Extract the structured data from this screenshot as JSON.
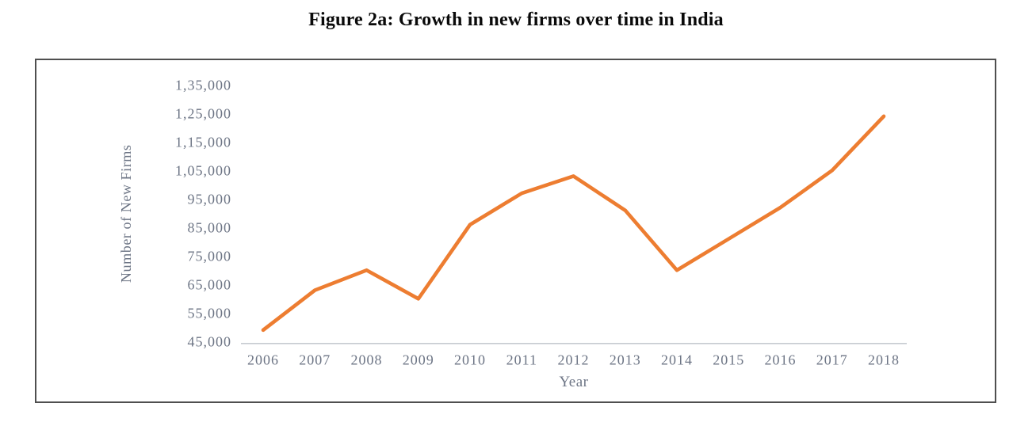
{
  "figure": {
    "title": "Figure 2a: Growth in new firms over time in India"
  },
  "chart_data": {
    "type": "line",
    "title": "Figure 2a: Growth in new firms over time in India",
    "xlabel": "Year",
    "ylabel": "Number of New Firms",
    "categories": [
      "2006",
      "2007",
      "2008",
      "2009",
      "2010",
      "2011",
      "2012",
      "2013",
      "2014",
      "2015",
      "2016",
      "2017",
      "2018"
    ],
    "series": [
      {
        "name": "Number of New Firms",
        "values": [
          49000,
          63000,
          70000,
          60000,
          86000,
          97000,
          103000,
          91000,
          70000,
          81000,
          92000,
          105000,
          124000
        ]
      }
    ],
    "ylim": [
      45000,
      135000
    ],
    "ytick_step": 10000,
    "ytick_labels_bottom_to_top": [
      "45,000",
      "55,000",
      "65,000",
      "75,000",
      "85,000",
      "95,000",
      "1,05,000",
      "1,15,000",
      "1,25,000",
      "1,35,000"
    ],
    "grid": false,
    "legend_position": "none",
    "line_color": "#ED7D31",
    "axis_line_color": "#c6cbd0",
    "tick_label_color": "#6d7585",
    "frame_border_color": "#4f4f4f"
  }
}
